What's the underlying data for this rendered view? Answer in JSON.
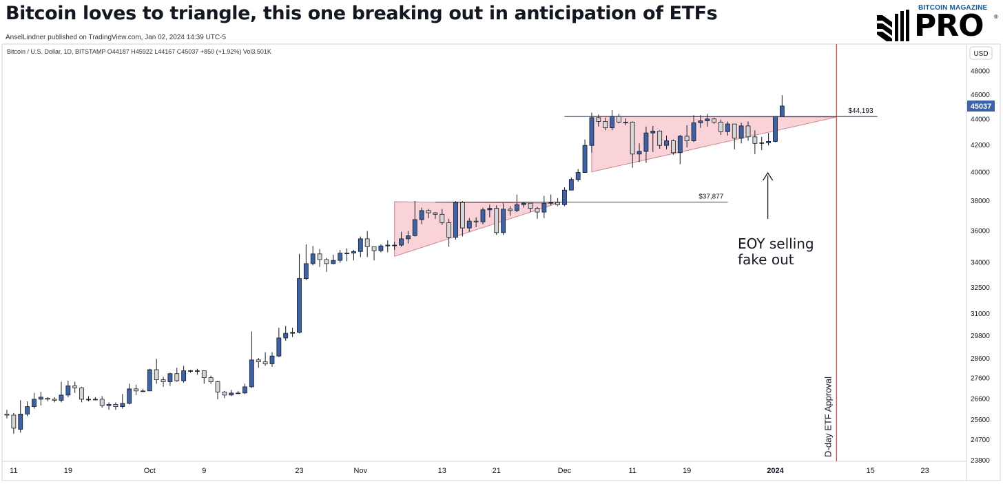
{
  "header": {
    "title": "Bitcoin loves to triangle, this one breaking out in anticipation of ETFs",
    "published": "AnselLindner published on TradingView.com, Jan 02, 2024 14:39 UTC-5"
  },
  "logo": {
    "brand": "BITCOIN MAGAZINE",
    "product": "PRO",
    "reg": "®"
  },
  "colors": {
    "up": "#3c63a8",
    "down": "#d6d6d6",
    "outline": "#131722",
    "triangle": "#f9d3d8",
    "vline": "#e03a3a",
    "hline": "#1f3a7a",
    "last_price": "#3c63a8"
  },
  "chart_data": {
    "type": "candlestick",
    "series_info": "Bitcoin / U.S. Dollar, 1D, BITSTAMP  O44187  H45922  L44167  C45037  +850 (+1.92%)  Vol3.501K",
    "currency": "USD",
    "last_price": "45037",
    "y_scale": "log",
    "ylim": [
      23800,
      49000
    ],
    "y_ticks": [
      "48000",
      "46000",
      "44000",
      "42000",
      "40000",
      "38000",
      "36000",
      "34000",
      "32500",
      "31000",
      "29800",
      "28600",
      "27600",
      "26600",
      "25600",
      "24700",
      "23800"
    ],
    "x_ticks": [
      {
        "label": "11",
        "date": "2023-09-11"
      },
      {
        "label": "19",
        "date": "2023-09-19"
      },
      {
        "label": "Oct",
        "date": "2023-10-01"
      },
      {
        "label": "9",
        "date": "2023-10-09"
      },
      {
        "label": "23",
        "date": "2023-10-23"
      },
      {
        "label": "Nov",
        "date": "2023-11-01"
      },
      {
        "label": "13",
        "date": "2023-11-13"
      },
      {
        "label": "21",
        "date": "2023-11-21"
      },
      {
        "label": "Dec",
        "date": "2023-12-01"
      },
      {
        "label": "11",
        "date": "2023-12-11"
      },
      {
        "label": "19",
        "date": "2023-12-19"
      },
      {
        "label": "2024",
        "date": "2024-01-01"
      },
      {
        "label": "15",
        "date": "2024-01-15"
      },
      {
        "label": "23",
        "date": "2024-01-23"
      }
    ],
    "x_range": [
      "2023-09-10",
      "2024-01-28"
    ],
    "candles": [
      {
        "d": "2023-09-10",
        "o": 25850,
        "h": 26050,
        "l": 25650,
        "c": 25800
      },
      {
        "d": "2023-09-11",
        "o": 25800,
        "h": 25900,
        "l": 24950,
        "c": 25200
      },
      {
        "d": "2023-09-12",
        "o": 25150,
        "h": 26500,
        "l": 25000,
        "c": 25850
      },
      {
        "d": "2023-09-13",
        "o": 25850,
        "h": 26450,
        "l": 25750,
        "c": 26200
      },
      {
        "d": "2023-09-14",
        "o": 26200,
        "h": 26850,
        "l": 26100,
        "c": 26550
      },
      {
        "d": "2023-09-15",
        "o": 26550,
        "h": 26900,
        "l": 26250,
        "c": 26650
      },
      {
        "d": "2023-09-16",
        "o": 26600,
        "h": 26650,
        "l": 26450,
        "c": 26550
      },
      {
        "d": "2023-09-17",
        "o": 26550,
        "h": 26650,
        "l": 26400,
        "c": 26500
      },
      {
        "d": "2023-09-18",
        "o": 26500,
        "h": 27400,
        "l": 26400,
        "c": 26750
      },
      {
        "d": "2023-09-19",
        "o": 26750,
        "h": 27450,
        "l": 26650,
        "c": 27200
      },
      {
        "d": "2023-09-20",
        "o": 27200,
        "h": 27400,
        "l": 26850,
        "c": 27100
      },
      {
        "d": "2023-09-21",
        "o": 27100,
        "h": 27150,
        "l": 26400,
        "c": 26550
      },
      {
        "d": "2023-09-22",
        "o": 26550,
        "h": 26700,
        "l": 26450,
        "c": 26550
      },
      {
        "d": "2023-09-23",
        "o": 26550,
        "h": 26650,
        "l": 26500,
        "c": 26550
      },
      {
        "d": "2023-09-24",
        "o": 26550,
        "h": 26700,
        "l": 26150,
        "c": 26250
      },
      {
        "d": "2023-09-25",
        "o": 26250,
        "h": 26400,
        "l": 26050,
        "c": 26300
      },
      {
        "d": "2023-09-26",
        "o": 26300,
        "h": 26400,
        "l": 26050,
        "c": 26200
      },
      {
        "d": "2023-09-27",
        "o": 26200,
        "h": 26800,
        "l": 26100,
        "c": 26350
      },
      {
        "d": "2023-09-28",
        "o": 26350,
        "h": 27300,
        "l": 26300,
        "c": 27050
      },
      {
        "d": "2023-09-29",
        "o": 27050,
        "h": 27250,
        "l": 26750,
        "c": 26950
      },
      {
        "d": "2023-09-30",
        "o": 26950,
        "h": 27050,
        "l": 26900,
        "c": 26950
      },
      {
        "d": "2023-10-01",
        "o": 26950,
        "h": 28050,
        "l": 26950,
        "c": 28000
      },
      {
        "d": "2023-10-02",
        "o": 28000,
        "h": 28550,
        "l": 27300,
        "c": 27500
      },
      {
        "d": "2023-10-03",
        "o": 27500,
        "h": 27650,
        "l": 27150,
        "c": 27400
      },
      {
        "d": "2023-10-04",
        "o": 27400,
        "h": 27850,
        "l": 27200,
        "c": 27800
      },
      {
        "d": "2023-10-05",
        "o": 27800,
        "h": 28100,
        "l": 27400,
        "c": 27450
      },
      {
        "d": "2023-10-06",
        "o": 27450,
        "h": 28200,
        "l": 27350,
        "c": 27950
      },
      {
        "d": "2023-10-07",
        "o": 27950,
        "h": 28000,
        "l": 27850,
        "c": 27950
      },
      {
        "d": "2023-10-08",
        "o": 27950,
        "h": 28050,
        "l": 27750,
        "c": 27950
      },
      {
        "d": "2023-10-09",
        "o": 27950,
        "h": 27950,
        "l": 27300,
        "c": 27600
      },
      {
        "d": "2023-10-10",
        "o": 27600,
        "h": 27700,
        "l": 27300,
        "c": 27400
      },
      {
        "d": "2023-10-11",
        "o": 27400,
        "h": 27450,
        "l": 26550,
        "c": 26900
      },
      {
        "d": "2023-10-12",
        "o": 26900,
        "h": 26950,
        "l": 26600,
        "c": 26750
      },
      {
        "d": "2023-10-13",
        "o": 26750,
        "h": 27000,
        "l": 26700,
        "c": 26850
      },
      {
        "d": "2023-10-14",
        "o": 26850,
        "h": 26950,
        "l": 26800,
        "c": 26850
      },
      {
        "d": "2023-10-15",
        "o": 26850,
        "h": 27300,
        "l": 26800,
        "c": 27150
      },
      {
        "d": "2023-10-16",
        "o": 27150,
        "h": 30000,
        "l": 27100,
        "c": 28500
      },
      {
        "d": "2023-10-17",
        "o": 28500,
        "h": 28600,
        "l": 28100,
        "c": 28400
      },
      {
        "d": "2023-10-18",
        "o": 28400,
        "h": 28900,
        "l": 28200,
        "c": 28300
      },
      {
        "d": "2023-10-19",
        "o": 28300,
        "h": 28900,
        "l": 28150,
        "c": 28700
      },
      {
        "d": "2023-10-20",
        "o": 28700,
        "h": 30200,
        "l": 28650,
        "c": 29650
      },
      {
        "d": "2023-10-21",
        "o": 29650,
        "h": 30300,
        "l": 29500,
        "c": 29900
      },
      {
        "d": "2023-10-22",
        "o": 29900,
        "h": 30200,
        "l": 29700,
        "c": 29950
      },
      {
        "d": "2023-10-23",
        "o": 29950,
        "h": 34500,
        "l": 29900,
        "c": 33000
      },
      {
        "d": "2023-10-24",
        "o": 33000,
        "h": 35100,
        "l": 32900,
        "c": 33900
      },
      {
        "d": "2023-10-25",
        "o": 33900,
        "h": 35000,
        "l": 33800,
        "c": 34500
      },
      {
        "d": "2023-10-26",
        "o": 34500,
        "h": 34800,
        "l": 33700,
        "c": 34150
      },
      {
        "d": "2023-10-27",
        "o": 34150,
        "h": 34250,
        "l": 33400,
        "c": 33900
      },
      {
        "d": "2023-10-28",
        "o": 33900,
        "h": 34450,
        "l": 33850,
        "c": 34100
      },
      {
        "d": "2023-10-29",
        "o": 34100,
        "h": 34750,
        "l": 33950,
        "c": 34550
      },
      {
        "d": "2023-10-30",
        "o": 34550,
        "h": 34850,
        "l": 34050,
        "c": 34550
      },
      {
        "d": "2023-10-31",
        "o": 34550,
        "h": 34750,
        "l": 34100,
        "c": 34650
      },
      {
        "d": "2023-11-01",
        "o": 34650,
        "h": 35600,
        "l": 34300,
        "c": 35450
      },
      {
        "d": "2023-11-02",
        "o": 35450,
        "h": 35950,
        "l": 34300,
        "c": 34950
      },
      {
        "d": "2023-11-03",
        "o": 34950,
        "h": 34950,
        "l": 34100,
        "c": 34700
      },
      {
        "d": "2023-11-04",
        "o": 34700,
        "h": 35100,
        "l": 34600,
        "c": 35000
      },
      {
        "d": "2023-11-05",
        "o": 35000,
        "h": 35350,
        "l": 34600,
        "c": 35050
      },
      {
        "d": "2023-11-06",
        "o": 35050,
        "h": 35250,
        "l": 34750,
        "c": 35050
      },
      {
        "d": "2023-11-07",
        "o": 35050,
        "h": 35900,
        "l": 34950,
        "c": 35450
      },
      {
        "d": "2023-11-08",
        "o": 35450,
        "h": 35950,
        "l": 35150,
        "c": 35650
      },
      {
        "d": "2023-11-09",
        "o": 35650,
        "h": 37950,
        "l": 35600,
        "c": 36700
      },
      {
        "d": "2023-11-10",
        "o": 36700,
        "h": 37500,
        "l": 36400,
        "c": 37300
      },
      {
        "d": "2023-11-11",
        "o": 37300,
        "h": 37400,
        "l": 36800,
        "c": 37150
      },
      {
        "d": "2023-11-12",
        "o": 37150,
        "h": 37200,
        "l": 36750,
        "c": 37050
      },
      {
        "d": "2023-11-13",
        "o": 37050,
        "h": 37400,
        "l": 36350,
        "c": 36500
      },
      {
        "d": "2023-11-14",
        "o": 36500,
        "h": 36750,
        "l": 34950,
        "c": 35550
      },
      {
        "d": "2023-11-15",
        "o": 35550,
        "h": 37950,
        "l": 35400,
        "c": 37850
      },
      {
        "d": "2023-11-16",
        "o": 37850,
        "h": 37950,
        "l": 35600,
        "c": 36150
      },
      {
        "d": "2023-11-17",
        "o": 36150,
        "h": 36800,
        "l": 35900,
        "c": 36600
      },
      {
        "d": "2023-11-18",
        "o": 36600,
        "h": 36850,
        "l": 36200,
        "c": 36550
      },
      {
        "d": "2023-11-19",
        "o": 36550,
        "h": 37500,
        "l": 36400,
        "c": 37350
      },
      {
        "d": "2023-11-20",
        "o": 37350,
        "h": 37700,
        "l": 36850,
        "c": 37450
      },
      {
        "d": "2023-11-21",
        "o": 37450,
        "h": 37650,
        "l": 35700,
        "c": 35850
      },
      {
        "d": "2023-11-22",
        "o": 35850,
        "h": 37800,
        "l": 35700,
        "c": 37400
      },
      {
        "d": "2023-11-23",
        "o": 37400,
        "h": 37600,
        "l": 36950,
        "c": 37300
      },
      {
        "d": "2023-11-24",
        "o": 37300,
        "h": 38400,
        "l": 37200,
        "c": 37700
      },
      {
        "d": "2023-11-25",
        "o": 37700,
        "h": 37900,
        "l": 37500,
        "c": 37800
      },
      {
        "d": "2023-11-26",
        "o": 37800,
        "h": 37800,
        "l": 37200,
        "c": 37450
      },
      {
        "d": "2023-11-27",
        "o": 37450,
        "h": 37550,
        "l": 36750,
        "c": 37200
      },
      {
        "d": "2023-11-28",
        "o": 37200,
        "h": 38300,
        "l": 36800,
        "c": 37800
      },
      {
        "d": "2023-11-29",
        "o": 37800,
        "h": 38400,
        "l": 37650,
        "c": 37850
      },
      {
        "d": "2023-11-30",
        "o": 37850,
        "h": 38150,
        "l": 37600,
        "c": 37700
      },
      {
        "d": "2023-12-01",
        "o": 37700,
        "h": 38900,
        "l": 37600,
        "c": 38700
      },
      {
        "d": "2023-12-02",
        "o": 38700,
        "h": 39600,
        "l": 38700,
        "c": 39450
      },
      {
        "d": "2023-12-03",
        "o": 39450,
        "h": 40200,
        "l": 39300,
        "c": 39950
      },
      {
        "d": "2023-12-04",
        "o": 39950,
        "h": 42400,
        "l": 39950,
        "c": 41950
      },
      {
        "d": "2023-12-05",
        "o": 41950,
        "h": 44500,
        "l": 41400,
        "c": 44100
      },
      {
        "d": "2023-12-06",
        "o": 44100,
        "h": 44350,
        "l": 43400,
        "c": 43800
      },
      {
        "d": "2023-12-07",
        "o": 43800,
        "h": 44100,
        "l": 43100,
        "c": 43300
      },
      {
        "d": "2023-12-08",
        "o": 43300,
        "h": 44700,
        "l": 43100,
        "c": 44200
      },
      {
        "d": "2023-12-09",
        "o": 44200,
        "h": 44400,
        "l": 43650,
        "c": 43750
      },
      {
        "d": "2023-12-10",
        "o": 43750,
        "h": 44050,
        "l": 43500,
        "c": 43750
      },
      {
        "d": "2023-12-11",
        "o": 43750,
        "h": 43800,
        "l": 40300,
        "c": 41300
      },
      {
        "d": "2023-12-12",
        "o": 41300,
        "h": 42100,
        "l": 40700,
        "c": 41500
      },
      {
        "d": "2023-12-13",
        "o": 41500,
        "h": 43400,
        "l": 40650,
        "c": 42900
      },
      {
        "d": "2023-12-14",
        "o": 42900,
        "h": 43450,
        "l": 41450,
        "c": 43050
      },
      {
        "d": "2023-12-15",
        "o": 43050,
        "h": 43100,
        "l": 41700,
        "c": 41950
      },
      {
        "d": "2023-12-16",
        "o": 41950,
        "h": 42700,
        "l": 41650,
        "c": 42300
      },
      {
        "d": "2023-12-17",
        "o": 42300,
        "h": 42400,
        "l": 41250,
        "c": 41400
      },
      {
        "d": "2023-12-18",
        "o": 41400,
        "h": 42750,
        "l": 40550,
        "c": 42650
      },
      {
        "d": "2023-12-19",
        "o": 42650,
        "h": 43500,
        "l": 41800,
        "c": 42300
      },
      {
        "d": "2023-12-20",
        "o": 42300,
        "h": 44300,
        "l": 42200,
        "c": 43700
      },
      {
        "d": "2023-12-21",
        "o": 43700,
        "h": 44300,
        "l": 43300,
        "c": 43850
      },
      {
        "d": "2023-12-22",
        "o": 43850,
        "h": 44400,
        "l": 43400,
        "c": 44000
      },
      {
        "d": "2023-12-23",
        "o": 44000,
        "h": 44100,
        "l": 43600,
        "c": 43750
      },
      {
        "d": "2023-12-24",
        "o": 43750,
        "h": 43950,
        "l": 42750,
        "c": 43000
      },
      {
        "d": "2023-12-25",
        "o": 43000,
        "h": 43800,
        "l": 42700,
        "c": 43600
      },
      {
        "d": "2023-12-26",
        "o": 43600,
        "h": 43600,
        "l": 41650,
        "c": 42500
      },
      {
        "d": "2023-12-27",
        "o": 42500,
        "h": 43700,
        "l": 42100,
        "c": 43450
      },
      {
        "d": "2023-12-28",
        "o": 43450,
        "h": 43800,
        "l": 42300,
        "c": 42600
      },
      {
        "d": "2023-12-29",
        "o": 42600,
        "h": 43100,
        "l": 41300,
        "c": 42100
      },
      {
        "d": "2023-12-30",
        "o": 42100,
        "h": 42600,
        "l": 41600,
        "c": 42150
      },
      {
        "d": "2023-12-31",
        "o": 42150,
        "h": 42900,
        "l": 41950,
        "c": 42250
      },
      {
        "d": "2024-01-01",
        "o": 42250,
        "h": 44200,
        "l": 42200,
        "c": 44200
      },
      {
        "d": "2024-01-02",
        "o": 44187,
        "h": 45922,
        "l": 44167,
        "c": 45037
      }
    ],
    "annotations": {
      "triangle_1": {
        "points": [
          {
            "d": "2023-11-06",
            "p": 37900
          },
          {
            "d": "2023-11-30",
            "p": 37800
          },
          {
            "d": "2023-11-06",
            "p": 34350
          }
        ]
      },
      "triangle_2": {
        "points": [
          {
            "d": "2023-12-05",
            "p": 44200
          },
          {
            "d": "2024-01-10",
            "p": 44150
          },
          {
            "d": "2023-12-05",
            "p": 40000
          }
        ]
      },
      "hlines": [
        {
          "price": 37877,
          "from": "2023-11-12",
          "to": "2023-12-25",
          "label": "$37,877"
        },
        {
          "price": 44193,
          "from": "2023-12-01",
          "to": "2024-01-16",
          "label": "$44,193"
        }
      ],
      "vline": {
        "date": "2024-01-10",
        "label": "D-day ETF Approval"
      },
      "note": {
        "lines": [
          "EOY selling",
          "fake out"
        ],
        "arrow_date": "2023-12-31"
      }
    }
  }
}
